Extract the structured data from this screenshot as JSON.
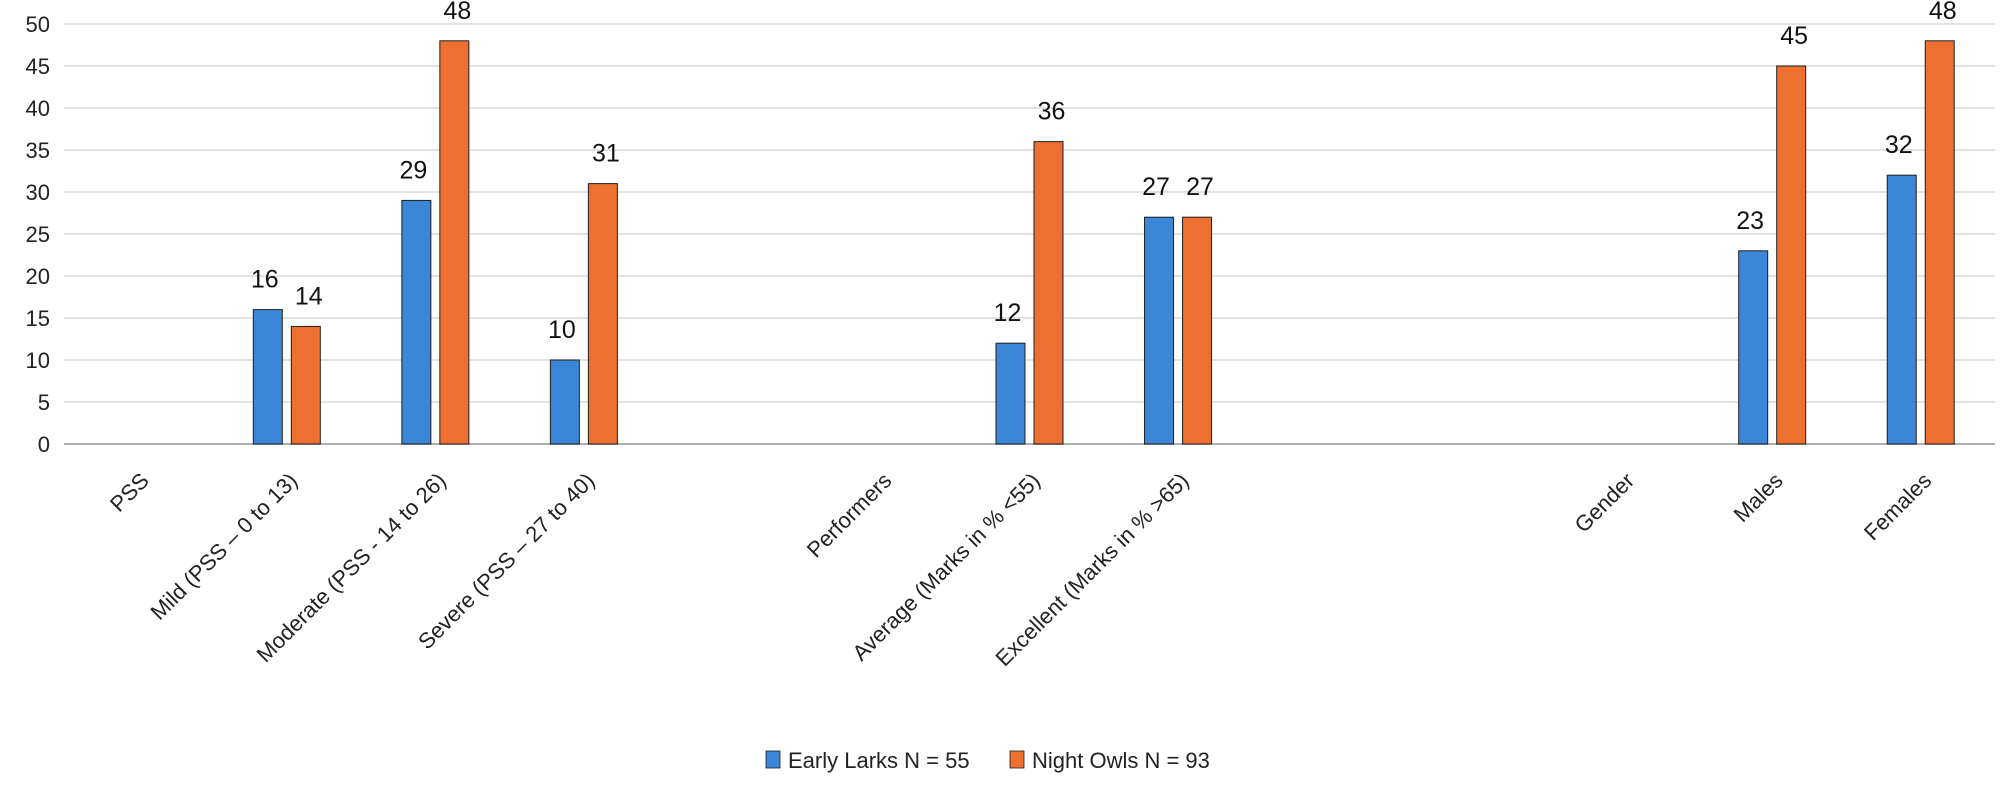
{
  "chart_data": {
    "type": "bar",
    "categories": [
      "PSS",
      "Mild (PSS – 0 to 13)",
      "Moderate (PSS - 14 to 26)",
      "Severe (PSS – 27 to 40)",
      "",
      "Performers",
      "Average (Marks in % <55)",
      "Excellent (Marks in % >65)",
      "",
      "",
      "Gender",
      "Males",
      "Females"
    ],
    "series": [
      {
        "name": "Early Larks N = 55",
        "color": "#3B86D6",
        "values": [
          null,
          16,
          29,
          10,
          null,
          null,
          12,
          27,
          null,
          null,
          null,
          23,
          32
        ]
      },
      {
        "name": "Night Owls N = 93",
        "color": "#ED7030",
        "values": [
          null,
          14,
          48,
          31,
          null,
          null,
          36,
          27,
          null,
          null,
          null,
          45,
          48
        ]
      }
    ],
    "ylim": [
      0,
      50
    ],
    "yticks": [
      0,
      5,
      10,
      15,
      20,
      25,
      30,
      35,
      40,
      45,
      50
    ],
    "grid": true,
    "legend_position": "bottom"
  }
}
